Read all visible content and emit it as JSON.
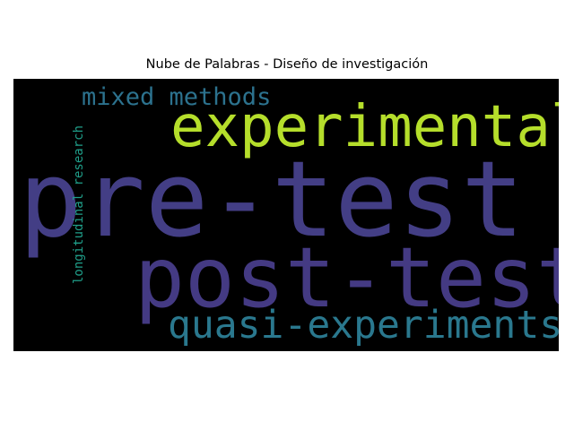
{
  "chart_data": {
    "type": "wordcloud",
    "title": "Nube de Palabras - Diseño de investigación",
    "background": "#000000",
    "words": [
      {
        "text": "pre-test",
        "color": "#433e85"
      },
      {
        "text": "post-test",
        "color": "#443a83"
      },
      {
        "text": "experimental",
        "color": "#b5de2b"
      },
      {
        "text": "quasi-experiments",
        "color": "#2a788e"
      },
      {
        "text": "mixed methods",
        "color": "#2c728e"
      },
      {
        "text": "longitudinal research",
        "color": "#1f9e89",
        "orientation": "vertical"
      }
    ]
  }
}
